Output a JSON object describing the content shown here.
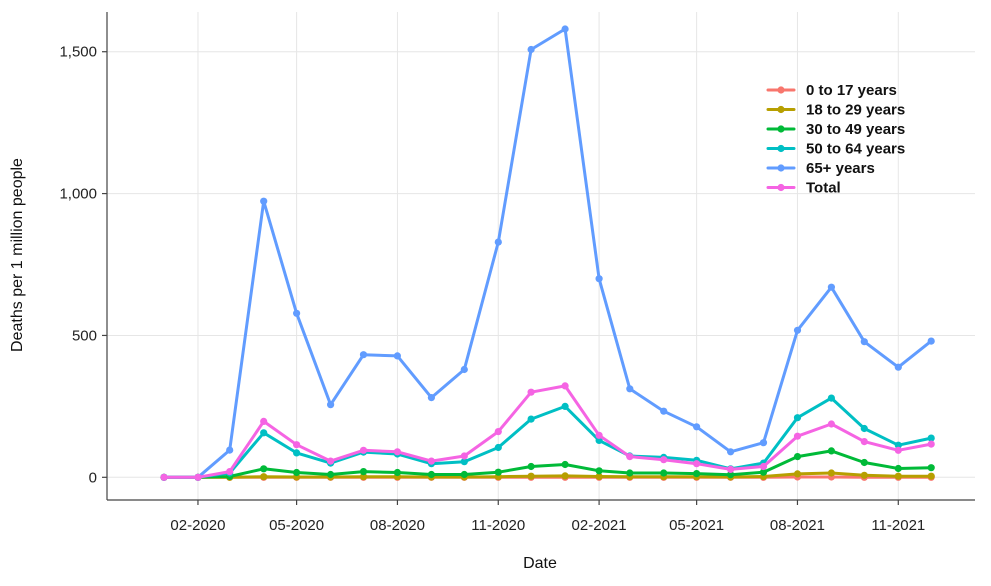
{
  "chart_data": {
    "type": "line",
    "xlabel": "Date",
    "ylabel": "Deaths per 1 million people",
    "ylim": [
      -80,
      1640
    ],
    "xlim": [
      "2019-11-10",
      "2022-01-10"
    ],
    "yticks": [
      0,
      500,
      1000,
      1500
    ],
    "ytick_labels": [
      "0",
      "500",
      "1,000",
      "1,500"
    ],
    "xticks": [
      "2020-02-01",
      "2020-05-01",
      "2020-08-01",
      "2020-11-01",
      "2021-02-01",
      "2021-05-01",
      "2021-08-01",
      "2021-11-01"
    ],
    "xtick_labels": [
      "02-2020",
      "05-2020",
      "08-2020",
      "11-2020",
      "02-2021",
      "05-2021",
      "08-2021",
      "11-2021"
    ],
    "grid": true,
    "legend_position": "top-right",
    "x": [
      "2020-01-01",
      "2020-02-01",
      "2020-03-01",
      "2020-04-01",
      "2020-05-01",
      "2020-06-01",
      "2020-07-01",
      "2020-08-01",
      "2020-09-01",
      "2020-10-01",
      "2020-11-01",
      "2020-12-01",
      "2021-01-01",
      "2021-02-01",
      "2021-03-01",
      "2021-04-01",
      "2021-05-01",
      "2021-06-01",
      "2021-07-01",
      "2021-08-01",
      "2021-09-01",
      "2021-10-01",
      "2021-11-01",
      "2021-12-01"
    ],
    "series": [
      {
        "name": "0 to 17 years",
        "color": "#f8766d",
        "values": [
          0,
          0,
          0,
          0,
          0,
          0,
          0,
          0,
          0,
          0,
          0,
          0,
          0,
          0,
          0,
          0,
          0,
          0,
          0,
          1,
          1,
          0,
          0,
          0
        ]
      },
      {
        "name": "18 to 29 years",
        "color": "#b79f00",
        "values": [
          0,
          0,
          0,
          2,
          1,
          1,
          2,
          2,
          1,
          1,
          2,
          4,
          5,
          3,
          2,
          2,
          2,
          1,
          3,
          12,
          15,
          7,
          4,
          4
        ]
      },
      {
        "name": "30 to 49 years",
        "color": "#00ba38",
        "values": [
          0,
          0,
          3,
          30,
          17,
          10,
          20,
          17,
          10,
          10,
          18,
          38,
          45,
          23,
          15,
          15,
          13,
          9,
          18,
          73,
          93,
          52,
          31,
          34
        ]
      },
      {
        "name": "50 to 64 years",
        "color": "#00bfc4",
        "values": [
          0,
          0,
          15,
          157,
          86,
          50,
          89,
          82,
          48,
          55,
          105,
          205,
          250,
          130,
          75,
          70,
          60,
          30,
          50,
          210,
          279,
          172,
          113,
          138
        ]
      },
      {
        "name": "65+ years",
        "color": "#619cff",
        "values": [
          0,
          0,
          96,
          973,
          578,
          256,
          432,
          428,
          281,
          380,
          829,
          1508,
          1580,
          700,
          312,
          233,
          178,
          90,
          122,
          518,
          670,
          478,
          388,
          480
        ]
      },
      {
        "name": "Total",
        "color": "#f564e3",
        "values": [
          0,
          0,
          20,
          197,
          115,
          57,
          95,
          90,
          57,
          75,
          161,
          300,
          322,
          148,
          73,
          62,
          48,
          28,
          38,
          145,
          188,
          126,
          95,
          117
        ]
      }
    ]
  }
}
